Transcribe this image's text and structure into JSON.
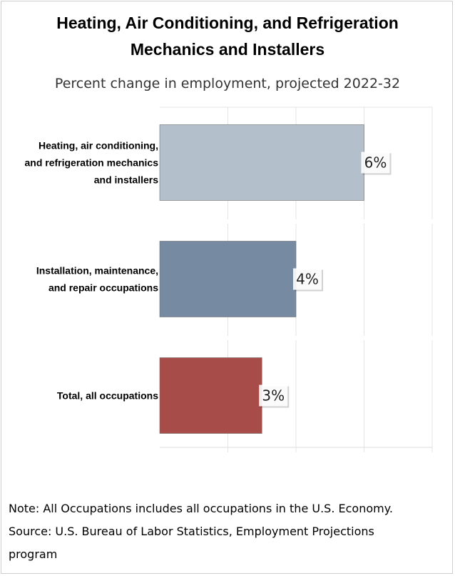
{
  "title_lines": [
    "Heating, Air Conditioning, and Refrigeration",
    "Mechanics and Installers"
  ],
  "subtitle": "Percent change in employment, projected 2022-32",
  "chart_data": {
    "type": "bar",
    "orientation": "horizontal",
    "title": "Heating, Air Conditioning, and Refrigeration Mechanics and Installers",
    "subtitle": "Percent change in employment, projected 2022-32",
    "categories": [
      [
        "Heating, air conditioning,",
        "and refrigeration mechanics",
        "and installers"
      ],
      [
        "Installation, maintenance,",
        "and repair occupations"
      ],
      [
        "Total, all occupations"
      ]
    ],
    "values": [
      6,
      4,
      3
    ],
    "data_labels": [
      "6%",
      "4%",
      "3%"
    ],
    "colors": [
      "#b3c0cc",
      "#768ba2",
      "#a74c48"
    ],
    "xlim": [
      0,
      8
    ],
    "grid": true
  },
  "notes": {
    "note": "Note: All Occupations includes all occupations in the U.S. Economy.",
    "source_lines": [
      "Source: U.S. Bureau of Labor Statistics, Employment Projections",
      "program"
    ]
  }
}
